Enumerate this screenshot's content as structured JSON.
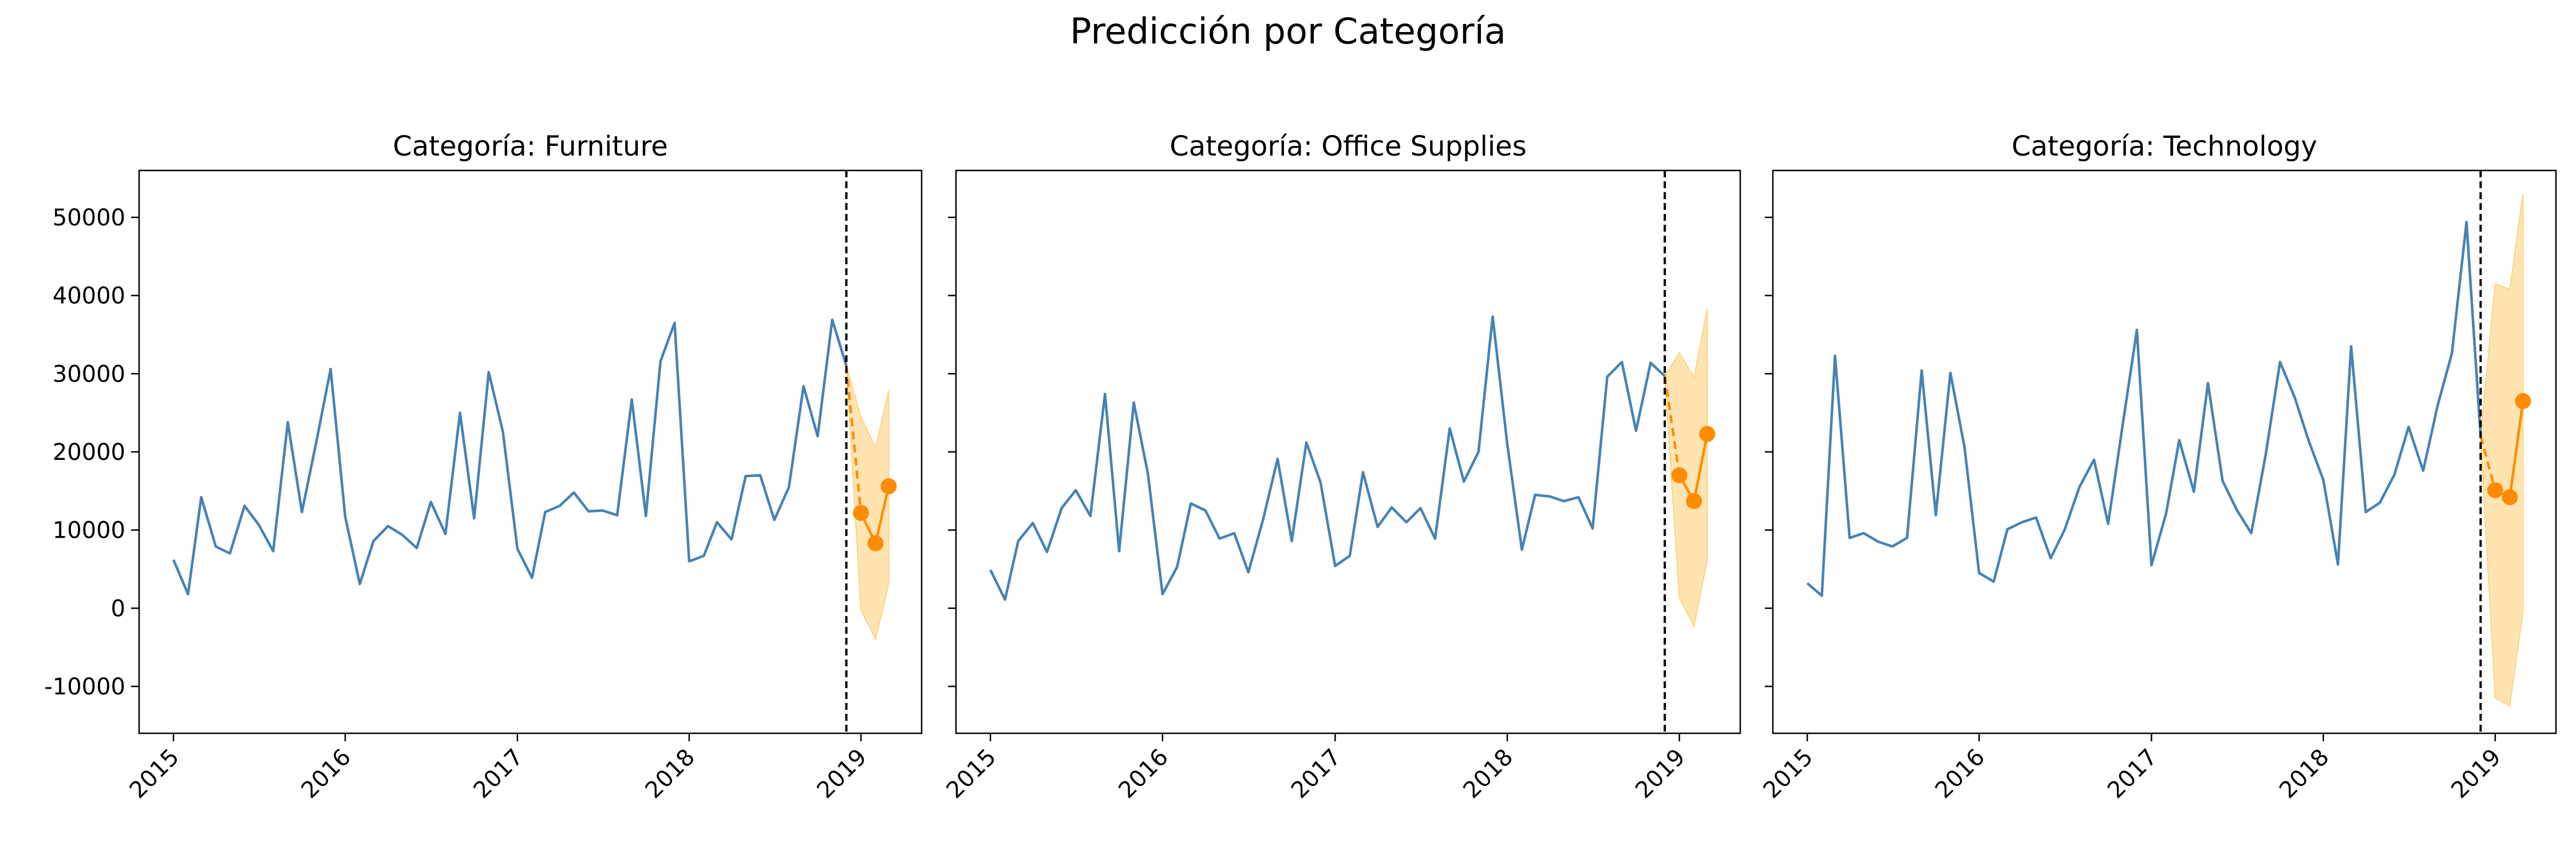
{
  "figure_title": "Predicción por Categoría",
  "colors": {
    "history": "#4682b4",
    "forecast": "#ff8c00",
    "interval": "#ffd27f",
    "cutoff": "#000000",
    "axes": "#000000"
  },
  "chart_data": [
    {
      "type": "line",
      "title": "Categoría: Furniture",
      "xlabel": "",
      "ylabel": "",
      "xlim": [
        "2014-10-20",
        "2019-05-10"
      ],
      "ylim": [
        -16000,
        56000
      ],
      "yticks": [
        -10000,
        0,
        10000,
        20000,
        30000,
        40000,
        50000
      ],
      "xticks": [
        "2015",
        "2016",
        "2017",
        "2018",
        "2019"
      ],
      "cutoff": "2018-12-01",
      "history": {
        "x": [
          "2015-01",
          "2015-02",
          "2015-03",
          "2015-04",
          "2015-05",
          "2015-06",
          "2015-07",
          "2015-08",
          "2015-09",
          "2015-10",
          "2015-11",
          "2015-12",
          "2016-01",
          "2016-02",
          "2016-03",
          "2016-04",
          "2016-05",
          "2016-06",
          "2016-07",
          "2016-08",
          "2016-09",
          "2016-10",
          "2016-11",
          "2016-12",
          "2017-01",
          "2017-02",
          "2017-03",
          "2017-04",
          "2017-05",
          "2017-06",
          "2017-07",
          "2017-08",
          "2017-09",
          "2017-10",
          "2017-11",
          "2017-12",
          "2018-01",
          "2018-02",
          "2018-03",
          "2018-04",
          "2018-05",
          "2018-06",
          "2018-07",
          "2018-08",
          "2018-09",
          "2018-10",
          "2018-11",
          "2018-12"
        ],
        "y": [
          6200,
          1800,
          14200,
          7900,
          7000,
          13100,
          10700,
          7300,
          23800,
          12300,
          21400,
          30600,
          11700,
          3100,
          8600,
          10500,
          9400,
          7700,
          13600,
          9500,
          25000,
          11500,
          30200,
          22600,
          7600,
          3900,
          12300,
          13100,
          14800,
          12400,
          12500,
          11900,
          26700,
          11800,
          31600,
          36500,
          6000,
          6700,
          11000,
          8800,
          16900,
          17000,
          11300,
          15500,
          28400,
          22000,
          36900,
          31000
        ]
      },
      "forecast": {
        "x": [
          "2019-01",
          "2019-02",
          "2019-03"
        ],
        "y": [
          12200,
          8300,
          15600
        ],
        "lower": [
          -200,
          -4000,
          3200
        ],
        "upper": [
          24500,
          20500,
          27800
        ]
      }
    },
    {
      "type": "line",
      "title": "Categoría: Office Supplies",
      "xlabel": "",
      "ylabel": "",
      "xlim": [
        "2014-10-20",
        "2019-05-10"
      ],
      "ylim": [
        -16000,
        56000
      ],
      "yticks": [
        -10000,
        0,
        10000,
        20000,
        30000,
        40000,
        50000
      ],
      "xticks": [
        "2015",
        "2016",
        "2017",
        "2018",
        "2019"
      ],
      "cutoff": "2018-12-01",
      "history": {
        "x": [
          "2015-01",
          "2015-02",
          "2015-03",
          "2015-04",
          "2015-05",
          "2015-06",
          "2015-07",
          "2015-08",
          "2015-09",
          "2015-10",
          "2015-11",
          "2015-12",
          "2016-01",
          "2016-02",
          "2016-03",
          "2016-04",
          "2016-05",
          "2016-06",
          "2016-07",
          "2016-08",
          "2016-09",
          "2016-10",
          "2016-11",
          "2016-12",
          "2017-01",
          "2017-02",
          "2017-03",
          "2017-04",
          "2017-05",
          "2017-06",
          "2017-07",
          "2017-08",
          "2017-09",
          "2017-10",
          "2017-11",
          "2017-12",
          "2018-01",
          "2018-02",
          "2018-03",
          "2018-04",
          "2018-05",
          "2018-06",
          "2018-07",
          "2018-08",
          "2018-09",
          "2018-10",
          "2018-11",
          "2018-12"
        ],
        "y": [
          4900,
          1100,
          8600,
          10900,
          7200,
          12800,
          15100,
          11800,
          27400,
          7300,
          26300,
          17200,
          1800,
          5300,
          13400,
          12500,
          8900,
          9600,
          4600,
          11300,
          19100,
          8600,
          21200,
          16100,
          5400,
          6700,
          17400,
          10400,
          12900,
          11000,
          12800,
          8900,
          23000,
          16200,
          20000,
          37300,
          21000,
          7500,
          14500,
          14300,
          13700,
          14200,
          10200,
          29600,
          31500,
          22700,
          31400,
          29700
        ]
      },
      "forecast": {
        "x": [
          "2019-01",
          "2019-02",
          "2019-03"
        ],
        "y": [
          17000,
          13700,
          22300
        ],
        "lower": [
          1300,
          -2300,
          6200
        ],
        "upper": [
          32700,
          29500,
          38300
        ]
      }
    },
    {
      "type": "line",
      "title": "Categoría: Technology",
      "xlabel": "",
      "ylabel": "",
      "xlim": [
        "2014-10-20",
        "2019-05-10"
      ],
      "ylim": [
        -16000,
        56000
      ],
      "yticks": [
        -10000,
        0,
        10000,
        20000,
        30000,
        40000,
        50000
      ],
      "xticks": [
        "2015",
        "2016",
        "2017",
        "2018",
        "2019"
      ],
      "cutoff": "2018-12-01",
      "history": {
        "x": [
          "2015-01",
          "2015-02",
          "2015-03",
          "2015-04",
          "2015-05",
          "2015-06",
          "2015-07",
          "2015-08",
          "2015-09",
          "2015-10",
          "2015-11",
          "2015-12",
          "2016-01",
          "2016-02",
          "2016-03",
          "2016-04",
          "2016-05",
          "2016-06",
          "2016-07",
          "2016-08",
          "2016-09",
          "2016-10",
          "2016-11",
          "2016-12",
          "2017-01",
          "2017-02",
          "2017-03",
          "2017-04",
          "2017-05",
          "2017-06",
          "2017-07",
          "2017-08",
          "2017-09",
          "2017-10",
          "2017-11",
          "2017-12",
          "2018-01",
          "2018-02",
          "2018-03",
          "2018-04",
          "2018-05",
          "2018-06",
          "2018-07",
          "2018-08",
          "2018-09",
          "2018-10",
          "2018-11",
          "2018-12"
        ],
        "y": [
          3200,
          1600,
          32300,
          9000,
          9600,
          8500,
          7900,
          9000,
          30400,
          11900,
          30100,
          20600,
          4500,
          3400,
          10100,
          11000,
          11600,
          6400,
          10100,
          15500,
          19000,
          10800,
          23500,
          35600,
          5500,
          12100,
          21500,
          14900,
          28800,
          16300,
          12600,
          9600,
          19800,
          31500,
          27000,
          21400,
          16400,
          5600,
          33500,
          12300,
          13500,
          17100,
          23200,
          17600,
          26000,
          32600,
          49400,
          22000
        ]
      },
      "forecast": {
        "x": [
          "2019-01",
          "2019-02",
          "2019-03"
        ],
        "y": [
          15100,
          14200,
          26500
        ],
        "lower": [
          -11500,
          -12500,
          -300
        ],
        "upper": [
          41500,
          40800,
          53000
        ]
      }
    }
  ]
}
